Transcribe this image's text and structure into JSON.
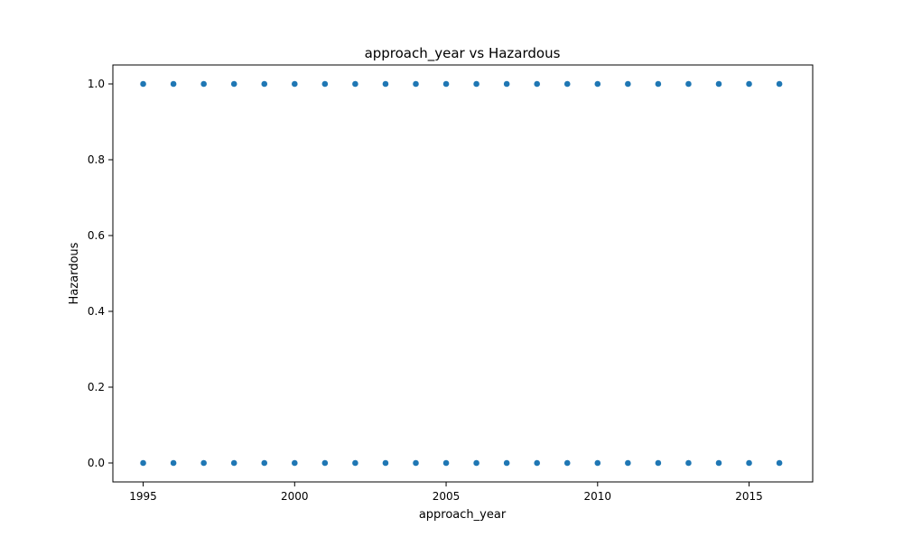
{
  "chart_data": {
    "type": "scatter",
    "title": "approach_year vs Hazardous",
    "xlabel": "approach_year",
    "ylabel": "Hazardous",
    "xlim": [
      1994.0,
      2017.1
    ],
    "ylim": [
      -0.05,
      1.05
    ],
    "x_ticks": [
      1995,
      2000,
      2005,
      2010,
      2015
    ],
    "y_ticks": [
      0.0,
      0.2,
      0.4,
      0.6,
      0.8,
      1.0
    ],
    "x_tick_labels": [
      "1995",
      "2000",
      "2005",
      "2010",
      "2015"
    ],
    "y_tick_labels": [
      "0.0",
      "0.2",
      "0.4",
      "0.6",
      "0.8",
      "1.0"
    ],
    "grid": false,
    "point_color": "#1f77b4",
    "points": [
      {
        "x": 1995,
        "y": 1
      },
      {
        "x": 1996,
        "y": 1
      },
      {
        "x": 1997,
        "y": 1
      },
      {
        "x": 1998,
        "y": 1
      },
      {
        "x": 1999,
        "y": 1
      },
      {
        "x": 2000,
        "y": 1
      },
      {
        "x": 2001,
        "y": 1
      },
      {
        "x": 2002,
        "y": 1
      },
      {
        "x": 2003,
        "y": 1
      },
      {
        "x": 2004,
        "y": 1
      },
      {
        "x": 2005,
        "y": 1
      },
      {
        "x": 2006,
        "y": 1
      },
      {
        "x": 2007,
        "y": 1
      },
      {
        "x": 2008,
        "y": 1
      },
      {
        "x": 2009,
        "y": 1
      },
      {
        "x": 2010,
        "y": 1
      },
      {
        "x": 2011,
        "y": 1
      },
      {
        "x": 2012,
        "y": 1
      },
      {
        "x": 2013,
        "y": 1
      },
      {
        "x": 2014,
        "y": 1
      },
      {
        "x": 2015,
        "y": 1
      },
      {
        "x": 2016,
        "y": 1
      },
      {
        "x": 1995,
        "y": 0
      },
      {
        "x": 1996,
        "y": 0
      },
      {
        "x": 1997,
        "y": 0
      },
      {
        "x": 1998,
        "y": 0
      },
      {
        "x": 1999,
        "y": 0
      },
      {
        "x": 2000,
        "y": 0
      },
      {
        "x": 2001,
        "y": 0
      },
      {
        "x": 2002,
        "y": 0
      },
      {
        "x": 2003,
        "y": 0
      },
      {
        "x": 2004,
        "y": 0
      },
      {
        "x": 2005,
        "y": 0
      },
      {
        "x": 2006,
        "y": 0
      },
      {
        "x": 2007,
        "y": 0
      },
      {
        "x": 2008,
        "y": 0
      },
      {
        "x": 2009,
        "y": 0
      },
      {
        "x": 2010,
        "y": 0
      },
      {
        "x": 2011,
        "y": 0
      },
      {
        "x": 2012,
        "y": 0
      },
      {
        "x": 2013,
        "y": 0
      },
      {
        "x": 2014,
        "y": 0
      },
      {
        "x": 2015,
        "y": 0
      },
      {
        "x": 2016,
        "y": 0
      }
    ]
  }
}
